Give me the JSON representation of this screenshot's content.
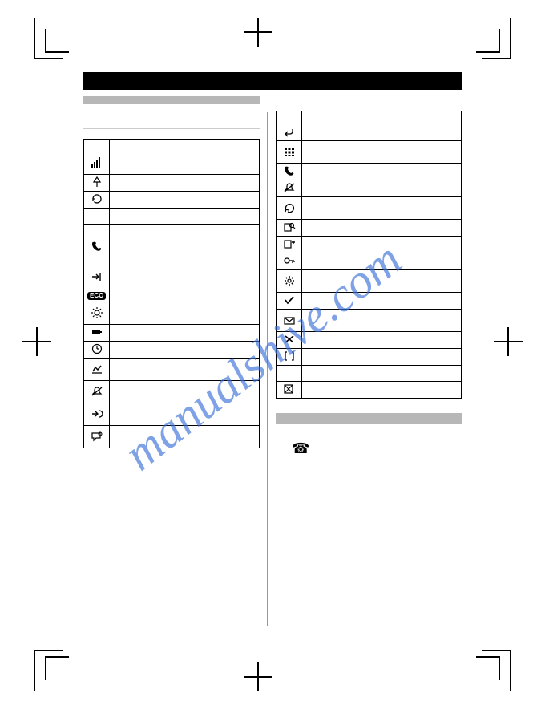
{
  "watermark": {
    "text": "manualshive.com",
    "color": "#3a6fd8",
    "opacity": 0.65,
    "font_size": 60,
    "rotate_deg": -38
  },
  "layout": {
    "black_bar_color": "#000000",
    "gray_bar_color": "#b7b7b7",
    "border_color": "#000000",
    "page_bg": "#ffffff"
  },
  "left_table": {
    "header": [
      "",
      ""
    ],
    "rows": [
      {
        "icon": "signal",
        "height": "h28"
      },
      {
        "icon": "antenna-down",
        "height": "h20"
      },
      {
        "icon": "refresh",
        "height": "h20"
      },
      {
        "icon": "blank",
        "height": "h20"
      },
      {
        "icon": "handset",
        "height": "h56"
      },
      {
        "icon": "arrow-in",
        "height": "h20"
      },
      {
        "icon": "eco",
        "height": "h20"
      },
      {
        "icon": "sun",
        "height": "h28"
      },
      {
        "icon": "battery",
        "height": "h20"
      },
      {
        "icon": "clock",
        "height": "h20"
      },
      {
        "icon": "chart",
        "height": "h28"
      },
      {
        "icon": "ringer-off",
        "height": "h28"
      },
      {
        "icon": "forward",
        "height": "h28"
      },
      {
        "icon": "speech",
        "height": "h28"
      }
    ]
  },
  "right_table": {
    "header": [
      "",
      ""
    ],
    "rows": [
      {
        "icon": "return",
        "height": "h20"
      },
      {
        "icon": "keypad",
        "height": "h28"
      },
      {
        "icon": "handset2",
        "height": "h20"
      },
      {
        "icon": "bell-off",
        "height": "h20"
      },
      {
        "icon": "redo",
        "height": "h28"
      },
      {
        "icon": "book-search",
        "height": "h20"
      },
      {
        "icon": "book-add",
        "height": "h20"
      },
      {
        "icon": "key",
        "height": "h20"
      },
      {
        "icon": "gear",
        "height": "h28"
      },
      {
        "icon": "check",
        "height": "h20"
      },
      {
        "icon": "inbox",
        "height": "h28"
      },
      {
        "icon": "cross",
        "height": "h20"
      },
      {
        "icon": "brackets",
        "height": "h20"
      },
      {
        "icon": "blank",
        "height": "h20"
      },
      {
        "icon": "grid-x",
        "height": "h20"
      }
    ]
  },
  "bottom_section": {
    "phone_glyph": "☎"
  }
}
